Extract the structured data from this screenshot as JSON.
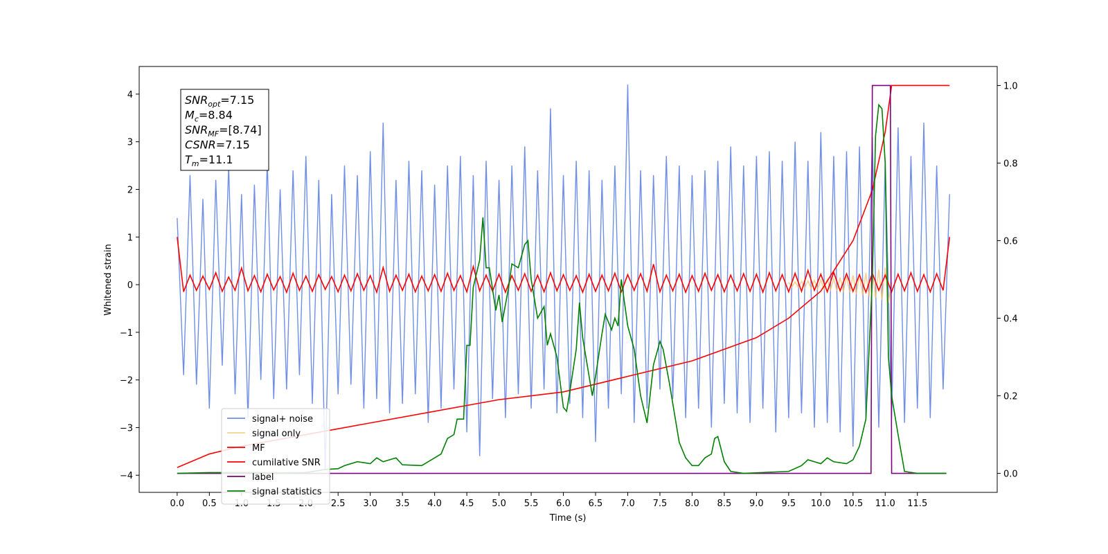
{
  "chart_data": {
    "type": "line",
    "xlabel": "Time (s)",
    "ylabel": "Whitened strain",
    "annotations": [
      {
        "main": "SNR",
        "sub": "opt",
        "rest": "=7.15"
      },
      {
        "main": "M",
        "sub": "c",
        "rest": "=8.84"
      },
      {
        "main": "SNR",
        "sub": "MF",
        "rest": "=[8.74]"
      },
      {
        "main": "CSNR",
        "sub": "",
        "rest": "=7.15"
      },
      {
        "main": "T",
        "sub": "m",
        "rest": "=11.1"
      }
    ],
    "xlim": [
      -0.59,
      12.74
    ],
    "ylim": [
      -4.36,
      4.58
    ],
    "y2lim": [
      -0.049,
      1.049
    ],
    "xticks": [
      {
        "value": 0,
        "label": "0.0"
      },
      0.5,
      {
        "value": 1,
        "label": "1.0"
      },
      1.5,
      {
        "value": 2,
        "label": "2.0"
      },
      2.5,
      {
        "value": 3,
        "label": "3.0"
      },
      3.5,
      {
        "value": 4,
        "label": "4.0"
      },
      4.5,
      {
        "value": 5,
        "label": "5.0"
      },
      5.5,
      {
        "value": 6,
        "label": "6.0"
      },
      6.5,
      {
        "value": 7,
        "label": "7.0"
      },
      7.5,
      {
        "value": 8,
        "label": "8.0"
      },
      8.5,
      {
        "value": 9,
        "label": "9.0"
      },
      9.5,
      {
        "value": 10,
        "label": "10.0"
      },
      10.5,
      {
        "value": 11,
        "label": "11.0"
      },
      11.5
    ],
    "yticks": [
      {
        "value": -4,
        "label": "−4"
      },
      {
        "value": -3,
        "label": "−3"
      },
      {
        "value": -2,
        "label": "−2"
      },
      {
        "value": -1,
        "label": "−1"
      },
      0,
      1,
      2,
      3,
      4
    ],
    "y2ticks": [
      {
        "value": 0,
        "label": "0.0"
      },
      0.2,
      0.4,
      0.6,
      0.8,
      {
        "value": 1,
        "label": "1.0"
      }
    ],
    "legend": "lower left",
    "series": [
      {
        "name": "signal+ noise",
        "color": "#6f8ee6",
        "axis": "y",
        "x": [
          0,
          0.1,
          0.2,
          0.3,
          0.4,
          0.5,
          0.6,
          0.7,
          0.8,
          0.9,
          1,
          1.1,
          1.2,
          1.3,
          1.4,
          1.5,
          1.6,
          1.7,
          1.8,
          1.9,
          2,
          2.1,
          2.2,
          2.3,
          2.4,
          2.5,
          2.6,
          2.7,
          2.8,
          2.9,
          3,
          3.1,
          3.2,
          3.3,
          3.4,
          3.5,
          3.6,
          3.7,
          3.8,
          3.9,
          4,
          4.1,
          4.2,
          4.3,
          4.4,
          4.5,
          4.6,
          4.7,
          4.8,
          4.9,
          5,
          5.1,
          5.2,
          5.3,
          5.4,
          5.5,
          5.6,
          5.7,
          5.8,
          5.9,
          6,
          6.1,
          6.2,
          6.3,
          6.4,
          6.5,
          6.6,
          6.7,
          6.8,
          6.9,
          7,
          7.1,
          7.2,
          7.3,
          7.4,
          7.5,
          7.6,
          7.7,
          7.8,
          7.9,
          8,
          8.1,
          8.2,
          8.3,
          8.4,
          8.5,
          8.6,
          8.7,
          8.8,
          8.9,
          9,
          9.1,
          9.2,
          9.3,
          9.4,
          9.5,
          9.6,
          9.7,
          9.8,
          9.9,
          10,
          10.1,
          10.2,
          10.3,
          10.4,
          10.5,
          10.6,
          10.7,
          10.8,
          10.9,
          11,
          11.1,
          11.2,
          11.3,
          11.4,
          11.5,
          11.6,
          11.7,
          11.8,
          11.9,
          12
        ],
        "values": [
          1.4,
          -1.9,
          2.3,
          -2.1,
          1.8,
          -2.6,
          2.2,
          -1.7,
          2.5,
          -2.3,
          1.9,
          -2.8,
          2.1,
          -2.0,
          2.6,
          -2.4,
          2.0,
          -2.2,
          2.4,
          -1.9,
          2.7,
          -2.5,
          2.2,
          -3.9,
          1.9,
          -2.3,
          2.5,
          -2.1,
          2.3,
          -2.6,
          2.8,
          -2.4,
          3.4,
          -2.7,
          2.2,
          -2.5,
          2.6,
          -2.3,
          2.4,
          -2.9,
          2.1,
          -2.6,
          2.5,
          -2.2,
          2.7,
          -3.1,
          2.3,
          -3.6,
          2.6,
          -2.4,
          2.2,
          -2.8,
          2.5,
          -2.3,
          2.9,
          -2.6,
          2.4,
          -2.2,
          3.7,
          -2.7,
          2.3,
          -2.5,
          2.6,
          -2.8,
          2.4,
          -3.3,
          2.2,
          -2.6,
          2.5,
          -2.3,
          4.2,
          -2.9,
          2.4,
          -2.6,
          2.3,
          -2.2,
          2.7,
          -2.4,
          2.5,
          -2.8,
          2.3,
          -2.6,
          2.4,
          -3.0,
          2.6,
          -2.5,
          2.9,
          -2.7,
          2.5,
          -2.9,
          2.7,
          -2.6,
          2.8,
          -3.1,
          2.6,
          -2.8,
          3.0,
          -2.7,
          2.6,
          -3.0,
          3.2,
          -2.9,
          2.7,
          -3.1,
          2.8,
          -3.4,
          2.9,
          -2.8,
          3.1,
          -3.0,
          2.6,
          -2.8,
          3.3,
          -2.9,
          2.7,
          -2.6,
          3.4,
          -2.8,
          2.5,
          -2.2,
          1.9
        ]
      },
      {
        "name": "signal only",
        "color": "#f5c26b",
        "axis": "y",
        "x": [
          9.5,
          9.55,
          9.6,
          9.65,
          9.7,
          9.75,
          9.8,
          9.85,
          9.9,
          9.95,
          10,
          10.05,
          10.1,
          10.15,
          10.2,
          10.25,
          10.3,
          10.35,
          10.4,
          10.45,
          10.5,
          10.55,
          10.6,
          10.65,
          10.7,
          10.75,
          10.8,
          10.85,
          10.9,
          10.95,
          11,
          11.05,
          11.1
        ],
        "values": [
          0.05,
          -0.05,
          0.06,
          -0.06,
          0.07,
          -0.07,
          0.08,
          -0.08,
          0.09,
          -0.09,
          0.1,
          -0.1,
          0.11,
          -0.11,
          0.13,
          -0.13,
          0.15,
          -0.15,
          0.17,
          -0.17,
          0.2,
          -0.2,
          0.22,
          -0.22,
          0.25,
          -0.25,
          0.28,
          -0.28,
          0.32,
          -0.32,
          0.36,
          -0.38,
          0.05
        ]
      },
      {
        "name": "MF",
        "color": "#ff0000",
        "axis": "y",
        "x": [
          0,
          0.1,
          0.2,
          0.3,
          0.4,
          0.5,
          0.6,
          0.7,
          0.8,
          0.9,
          1,
          1.1,
          1.2,
          1.3,
          1.4,
          1.5,
          1.6,
          1.7,
          1.8,
          1.9,
          2,
          2.1,
          2.2,
          2.3,
          2.4,
          2.5,
          2.6,
          2.7,
          2.8,
          2.9,
          3,
          3.1,
          3.2,
          3.3,
          3.4,
          3.5,
          3.6,
          3.7,
          3.8,
          3.9,
          4,
          4.1,
          4.2,
          4.3,
          4.4,
          4.5,
          4.6,
          4.7,
          4.8,
          4.9,
          5,
          5.1,
          5.2,
          5.3,
          5.4,
          5.5,
          5.6,
          5.7,
          5.8,
          5.9,
          6,
          6.1,
          6.2,
          6.3,
          6.4,
          6.5,
          6.6,
          6.7,
          6.8,
          6.9,
          7,
          7.1,
          7.2,
          7.3,
          7.4,
          7.5,
          7.6,
          7.7,
          7.8,
          7.9,
          8,
          8.1,
          8.2,
          8.3,
          8.4,
          8.5,
          8.6,
          8.7,
          8.8,
          8.9,
          9,
          9.1,
          9.2,
          9.3,
          9.4,
          9.5,
          9.6,
          9.7,
          9.8,
          9.9,
          10,
          10.1,
          10.2,
          10.3,
          10.4,
          10.5,
          10.6,
          10.7,
          10.8,
          10.9,
          11,
          11.1,
          11.2,
          11.3,
          11.4,
          11.5,
          11.6,
          11.7,
          11.8,
          11.9,
          12
        ],
        "values": [
          1.0,
          -0.15,
          0.2,
          -0.12,
          0.18,
          -0.1,
          0.25,
          -0.14,
          0.16,
          -0.12,
          0.35,
          -0.13,
          0.19,
          -0.15,
          0.22,
          -0.11,
          0.17,
          -0.16,
          0.24,
          -0.12,
          0.18,
          -0.14,
          0.21,
          -0.1,
          0.17,
          -0.15,
          0.2,
          -0.13,
          0.23,
          -0.12,
          0.19,
          -0.16,
          0.36,
          -0.14,
          0.2,
          -0.12,
          0.22,
          -0.15,
          0.18,
          -0.13,
          0.21,
          -0.14,
          0.24,
          -0.12,
          0.19,
          -0.15,
          0.38,
          -0.13,
          0.2,
          -0.14,
          0.22,
          -0.16,
          0.19,
          -0.12,
          0.23,
          -0.14,
          0.2,
          -0.15,
          0.25,
          -0.13,
          0.21,
          -0.12,
          0.19,
          -0.16,
          0.22,
          -0.14,
          0.2,
          -0.13,
          0.24,
          -0.15,
          0.21,
          -0.12,
          0.23,
          -0.14,
          0.43,
          -0.15,
          0.2,
          -0.13,
          0.22,
          -0.16,
          0.19,
          -0.14,
          0.24,
          -0.12,
          0.21,
          -0.15,
          0.2,
          -0.13,
          0.23,
          -0.14,
          0.22,
          -0.16,
          0.25,
          -0.13,
          0.21,
          -0.15,
          0.24,
          -0.14,
          0.3,
          -0.12,
          0.22,
          -0.15,
          0.26,
          -0.13,
          0.23,
          -0.14,
          0.21,
          -0.16,
          0.24,
          -0.12,
          0.2,
          -0.15,
          0.22,
          -0.13,
          0.25,
          -0.14,
          0.21,
          -0.15,
          0.23,
          -0.12,
          1.0
        ]
      },
      {
        "name": "cumilative SNR",
        "color": "#ff0000",
        "axis": "y2",
        "x": [
          0,
          0.5,
          1,
          2,
          3,
          4,
          5,
          6,
          7,
          8,
          9,
          9.5,
          10,
          10.5,
          10.8,
          11,
          11.1,
          12
        ],
        "values": [
          0.015,
          0.05,
          0.07,
          0.1,
          0.13,
          0.16,
          0.19,
          0.21,
          0.25,
          0.29,
          0.35,
          0.4,
          0.47,
          0.6,
          0.73,
          0.88,
          1.0,
          1.0
        ]
      },
      {
        "name": "label",
        "color": "#800080",
        "axis": "y2",
        "x": [
          0,
          10.78,
          10.8,
          11.08,
          11.1,
          11.95
        ],
        "values": [
          0,
          0,
          1,
          1,
          0,
          0
        ]
      },
      {
        "name": "signal statistics",
        "color": "#008000",
        "axis": "y2",
        "x": [
          0,
          0.5,
          1,
          1.5,
          2,
          2.3,
          2.5,
          2.6,
          2.8,
          3,
          3.1,
          3.2,
          3.4,
          3.5,
          3.8,
          4,
          4.1,
          4.2,
          4.3,
          4.35,
          4.45,
          4.5,
          4.55,
          4.6,
          4.7,
          4.75,
          4.8,
          4.85,
          4.95,
          5,
          5.05,
          5.15,
          5.2,
          5.3,
          5.4,
          5.45,
          5.5,
          5.6,
          5.7,
          5.75,
          5.8,
          5.9,
          6,
          6.05,
          6.1,
          6.2,
          6.25,
          6.3,
          6.45,
          6.5,
          6.6,
          6.65,
          6.75,
          6.8,
          6.85,
          6.9,
          7,
          7.1,
          7.2,
          7.3,
          7.4,
          7.5,
          7.55,
          7.65,
          7.8,
          7.9,
          8,
          8.1,
          8.2,
          8.3,
          8.35,
          8.4,
          8.5,
          8.6,
          8.8,
          9.2,
          9.5,
          9.7,
          9.8,
          9.9,
          10,
          10.1,
          10.2,
          10.4,
          10.5,
          10.6,
          10.7,
          10.8,
          10.85,
          10.9,
          10.95,
          11,
          11.05,
          11.1,
          11.2,
          11.3,
          11.5,
          11.95
        ],
        "values": [
          0,
          0.002,
          0.002,
          0.001,
          0.002,
          0.01,
          0.012,
          0.02,
          0.03,
          0.025,
          0.04,
          0.03,
          0.04,
          0.022,
          0.02,
          0.04,
          0.05,
          0.09,
          0.1,
          0.14,
          0.14,
          0.33,
          0.33,
          0.48,
          0.55,
          0.66,
          0.53,
          0.53,
          0.42,
          0.46,
          0.39,
          0.48,
          0.54,
          0.53,
          0.59,
          0.6,
          0.5,
          0.4,
          0.43,
          0.33,
          0.36,
          0.3,
          0.17,
          0.16,
          0.21,
          0.32,
          0.44,
          0.35,
          0.2,
          0.25,
          0.36,
          0.41,
          0.37,
          0.4,
          0.38,
          0.5,
          0.38,
          0.32,
          0.2,
          0.13,
          0.28,
          0.34,
          0.32,
          0.23,
          0.08,
          0.04,
          0.02,
          0.02,
          0.04,
          0.05,
          0.09,
          0.095,
          0.03,
          0.005,
          0,
          0.003,
          0.005,
          0.02,
          0.035,
          0.03,
          0.025,
          0.04,
          0.03,
          0.025,
          0.035,
          0.07,
          0.14,
          0.5,
          0.87,
          0.95,
          0.94,
          0.8,
          0.3,
          0.2,
          0.1,
          0.005,
          0,
          0
        ]
      }
    ]
  }
}
